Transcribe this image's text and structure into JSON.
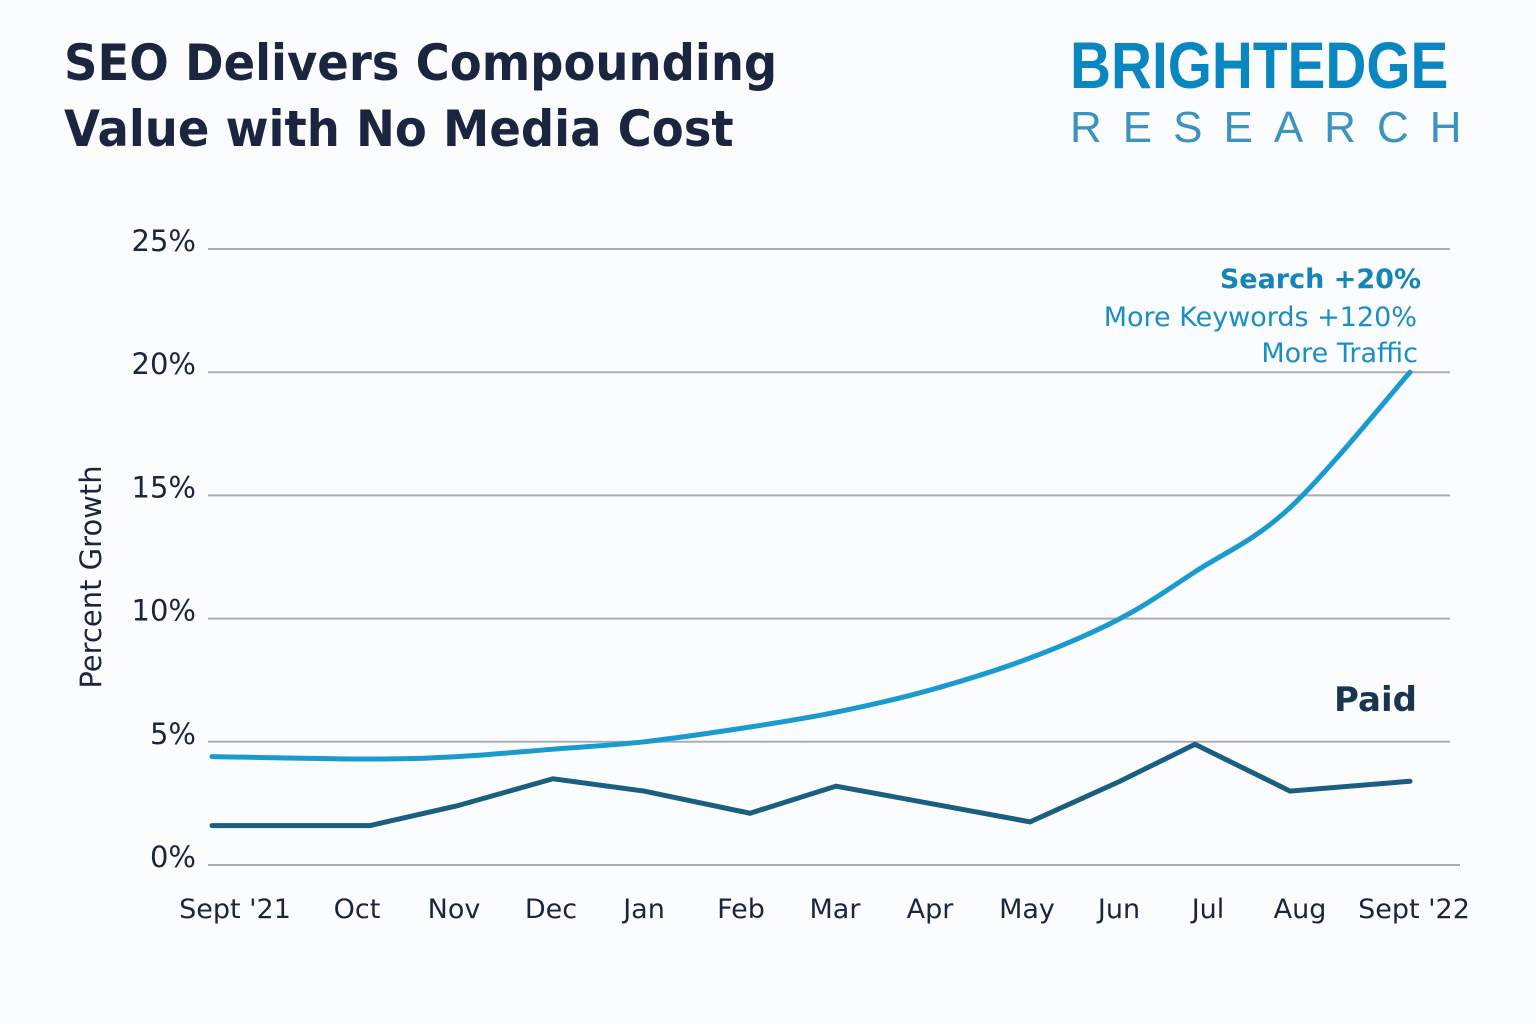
{
  "title_lines": [
    "SEO Delivers Compounding",
    "Value with No Media Cost"
  ],
  "logo": {
    "top": "BRIGHTEDGE",
    "bottom": "RESEARCH"
  },
  "colors": {
    "title": "#1b2540",
    "search": "#1a9bd0",
    "paid": "#1a5f80",
    "logo": "#0a86c0",
    "grid": "#a9adb3"
  },
  "chart_data": {
    "type": "line",
    "title": "SEO Delivers Compounding Value with No Media Cost",
    "xlabel": "",
    "ylabel": "Percent Growth",
    "ylim": [
      0,
      25
    ],
    "yticks": [
      "0%",
      "5%",
      "10%",
      "15%",
      "20%",
      "25%"
    ],
    "ytick_values": [
      0,
      5,
      10,
      15,
      20,
      25
    ],
    "grid": true,
    "categories": [
      "Sept '21",
      "Oct",
      "Nov",
      "Dec",
      "Jan",
      "Feb",
      "Mar",
      "Apr",
      "May",
      "Jun",
      "Jul",
      "Aug",
      "Sept '22"
    ],
    "series": [
      {
        "name": "Search",
        "values": [
          4.4,
          4.3,
          4.4,
          4.7,
          5.0,
          5.6,
          6.2,
          7.1,
          8.4,
          10.0,
          11.9,
          14.5,
          20.0
        ]
      },
      {
        "name": "Paid",
        "values": [
          1.6,
          1.6,
          2.4,
          3.5,
          3.0,
          2.1,
          3.2,
          2.5,
          1.75,
          3.4,
          4.9,
          3.0,
          3.4
        ]
      }
    ],
    "annotations": {
      "search": [
        "Search +20%",
        "More Keywords +120%",
        "More Traffic"
      ],
      "paid": "Paid"
    }
  }
}
